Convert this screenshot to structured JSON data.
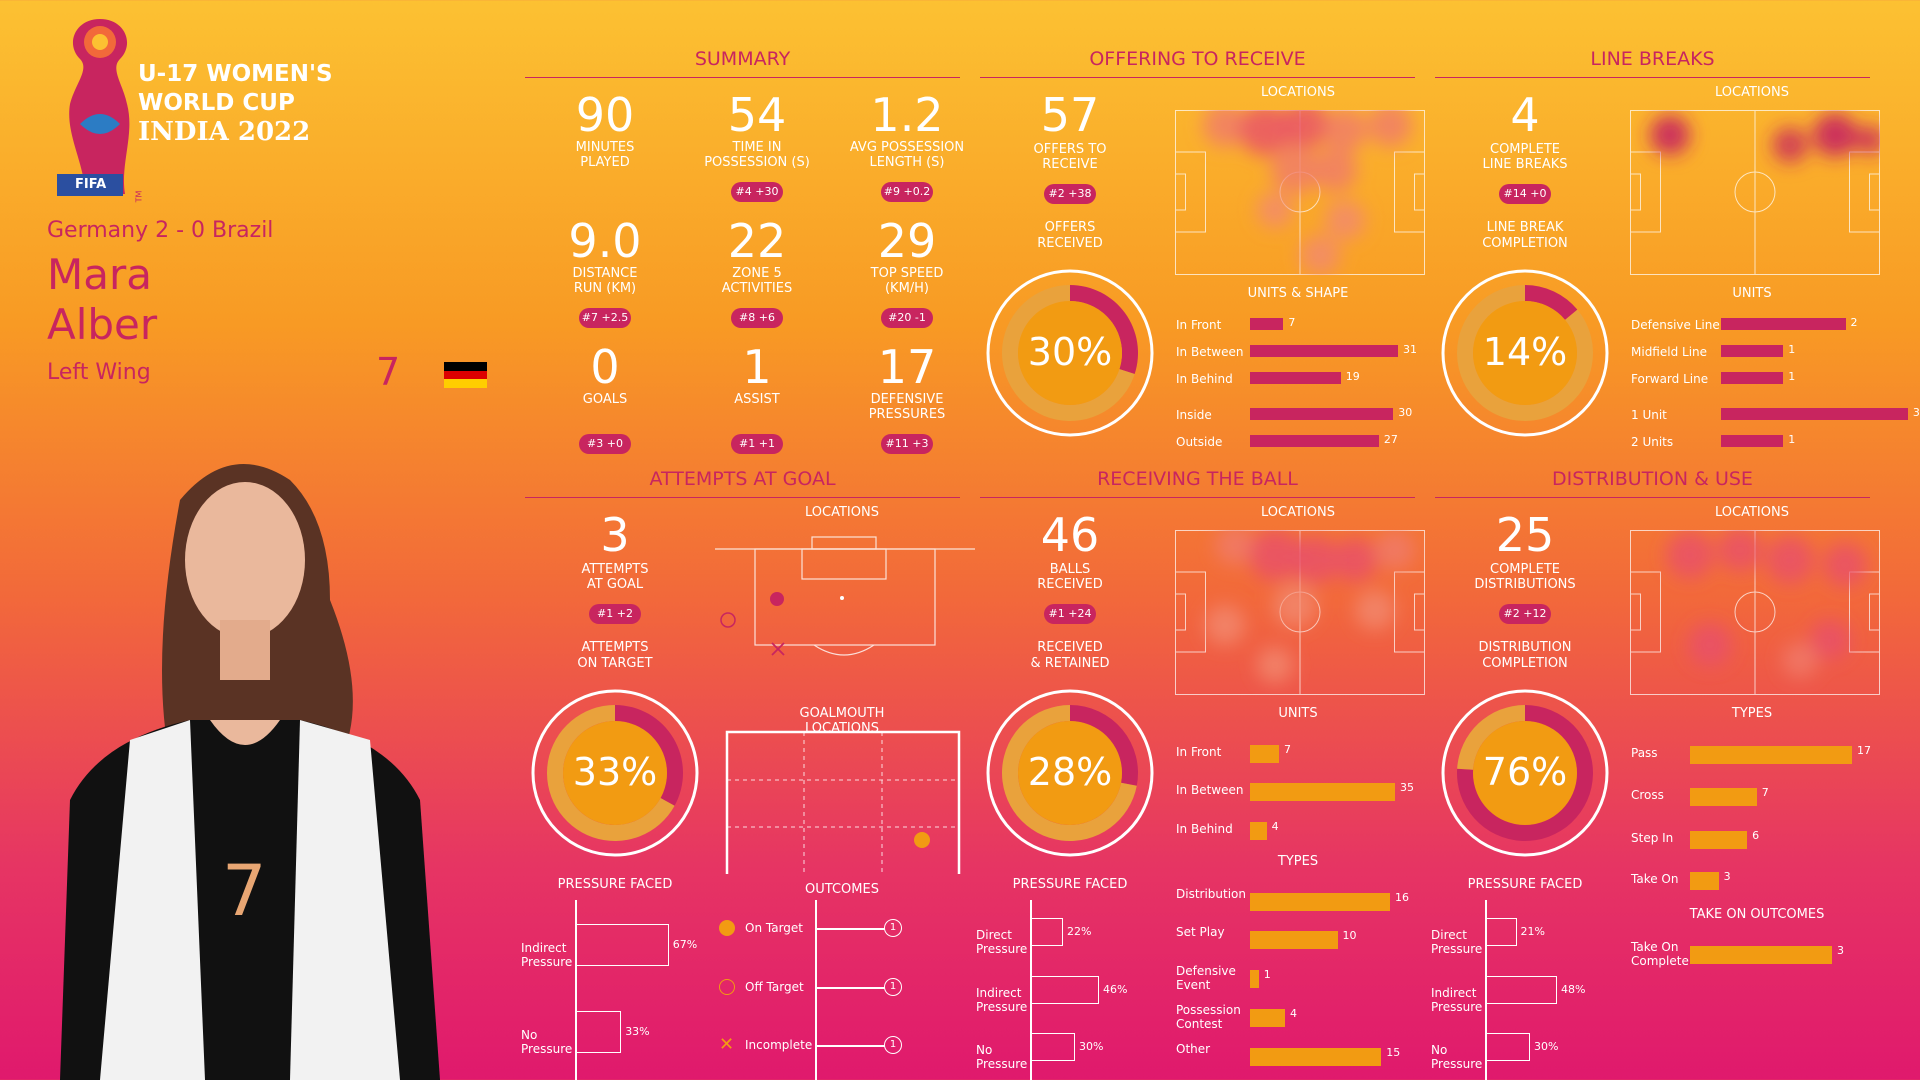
{
  "logo": {
    "title_line1": "U-17 WOMEN'S",
    "title_line2": "WORLD CUP",
    "title_line3": "INDIA 2022",
    "fifa": "FIFA",
    "tm": "TM"
  },
  "player": {
    "match": "Germany 2 - 0 Brazil",
    "first": "Mara",
    "last": "Alber",
    "position": "Left Wing",
    "number": "7",
    "shirt_number": "7"
  },
  "colors": {
    "pink": "#c8255f",
    "orange": "#f29b12",
    "light_orange": "#e9a23c",
    "white": "#ffffff"
  },
  "summary": {
    "title": "SUMMARY",
    "stats": [
      {
        "value": "90",
        "label1": "MINUTES",
        "label2": "PLAYED",
        "rank": ""
      },
      {
        "value": "54",
        "label1": "TIME IN",
        "label2": "POSSESSION (s)",
        "rank": "#4 +30"
      },
      {
        "value": "1.2",
        "label1": "AVG POSSESSION",
        "label2": "LENGTH (s)",
        "rank": "#9 +0.2"
      },
      {
        "value": "9.0",
        "label1": "DISTANCE",
        "label2": "RUN (KM)",
        "rank": "#7 +2.5"
      },
      {
        "value": "22",
        "label1": "ZONE 5",
        "label2": "ACTIVITIES",
        "rank": "#8 +6"
      },
      {
        "value": "29",
        "label1": "TOP SPEED",
        "label2": "(KM/H)",
        "rank": "#20 -1"
      },
      {
        "value": "0",
        "label1": "GOALS",
        "label2": "",
        "rank": "#3 +0"
      },
      {
        "value": "1",
        "label1": "ASSIST",
        "label2": "",
        "rank": "#1 +1"
      },
      {
        "value": "17",
        "label1": "DEFENSIVE",
        "label2": "PRESSURES",
        "rank": "#11 +3"
      }
    ]
  },
  "offering": {
    "title": "OFFERING TO RECEIVE",
    "value": "57",
    "label1": "OFFERS TO",
    "label2": "RECEIVE",
    "rank": "#2 +38",
    "sub1": "OFFERS",
    "sub2": "RECEIVED",
    "pct": "30%",
    "loc": "LOCATIONS",
    "units_title": "UNITS & SHAPE"
  },
  "linebreaks": {
    "title": "LINE BREAKS",
    "value": "4",
    "label1": "COMPLETE",
    "label2": "LINE BREAKS",
    "rank": "#14 +0",
    "sub1": "LINE BREAK",
    "sub2": "COMPLETION",
    "pct": "14%",
    "loc": "LOCATIONS",
    "units_title": "UNITS"
  },
  "attempts": {
    "title": "ATTEMPTS AT GOAL",
    "value": "3",
    "label1": "ATTEMPTS",
    "label2": "AT GOAL",
    "rank": "#1 +2",
    "sub1": "ATTEMPTS",
    "sub2": "ON TARGET",
    "pct": "33%",
    "loc": "LOCATIONS",
    "goalmouth": "GOALMOUTH LOCATIONS",
    "pressure": "PRESSURE FACED",
    "outcomes_title": "OUTCOMES"
  },
  "receiving": {
    "title": "RECEIVING THE BALL",
    "value": "46",
    "label1": "BALLS",
    "label2": "RECEIVED",
    "rank": "#1 +24",
    "sub1": "RECEIVED",
    "sub2": "& RETAINED",
    "pct": "28%",
    "loc": "LOCATIONS",
    "units_title": "UNITS",
    "types_title": "TYPES",
    "pressure": "PRESSURE FACED"
  },
  "distribution": {
    "title": "DISTRIBUTION & USE",
    "value": "25",
    "label1": "COMPLETE",
    "label2": "DISTRIBUTIONS",
    "rank": "#2 +12",
    "sub1": "DISTRIBUTION",
    "sub2": "COMPLETION",
    "pct": "76%",
    "loc": "LOCATIONS",
    "types_title": "TYPES",
    "takeon_title": "TAKE ON OUTCOMES",
    "pressure": "PRESSURE FACED"
  },
  "chart_data": [
    {
      "type": "bar",
      "id": "offering_units",
      "categories": [
        "In Front",
        "In Between",
        "In Behind",
        "Inside",
        "Outside"
      ],
      "values": [
        7,
        31,
        19,
        30,
        27
      ]
    },
    {
      "type": "bar",
      "id": "linebreak_units",
      "categories": [
        "Defensive Line",
        "Midfield Line",
        "Forward Line",
        "1 Unit",
        "2 Units"
      ],
      "values": [
        2,
        1,
        1,
        3,
        1
      ]
    },
    {
      "type": "bar",
      "id": "receiving_units",
      "categories": [
        "In Front",
        "In Between",
        "In Behind"
      ],
      "values": [
        7,
        35,
        4
      ]
    },
    {
      "type": "bar",
      "id": "receiving_types",
      "categories": [
        "Distribution",
        "Set Play",
        "Defensive Event",
        "Possession Contest",
        "Other"
      ],
      "values": [
        16,
        10,
        1,
        4,
        15
      ]
    },
    {
      "type": "bar",
      "id": "distribution_types",
      "categories": [
        "Pass",
        "Cross",
        "Step In",
        "Take On"
      ],
      "values": [
        17,
        7,
        6,
        3
      ]
    },
    {
      "type": "bar",
      "id": "takeon_outcomes",
      "categories": [
        "Take On Complete"
      ],
      "values": [
        3
      ]
    },
    {
      "type": "bar",
      "id": "attempts_pressure",
      "categories": [
        "Indirect Pressure",
        "No Pressure"
      ],
      "values": [
        67,
        33
      ],
      "unit": "%"
    },
    {
      "type": "bar",
      "id": "receiving_pressure",
      "categories": [
        "Direct Pressure",
        "Indirect Pressure",
        "No Pressure"
      ],
      "values": [
        22,
        46,
        30
      ],
      "unit": "%"
    },
    {
      "type": "bar",
      "id": "distribution_pressure",
      "categories": [
        "Direct Pressure",
        "Indirect Pressure",
        "No Pressure"
      ],
      "values": [
        21,
        48,
        30
      ],
      "unit": "%"
    },
    {
      "type": "bar",
      "id": "attempt_outcomes",
      "categories": [
        "On Target",
        "Off Target",
        "Incomplete"
      ],
      "values": [
        1,
        1,
        1
      ]
    },
    {
      "type": "pie",
      "id": "offers_received",
      "values": [
        30,
        70
      ],
      "label": "30%"
    },
    {
      "type": "pie",
      "id": "line_break_completion",
      "values": [
        14,
        86
      ],
      "label": "14%"
    },
    {
      "type": "pie",
      "id": "attempts_on_target",
      "values": [
        33,
        67
      ],
      "label": "33%"
    },
    {
      "type": "pie",
      "id": "received_retained",
      "values": [
        28,
        72
      ],
      "label": "28%"
    },
    {
      "type": "pie",
      "id": "distribution_completion",
      "values": [
        76,
        24
      ],
      "label": "76%"
    }
  ]
}
